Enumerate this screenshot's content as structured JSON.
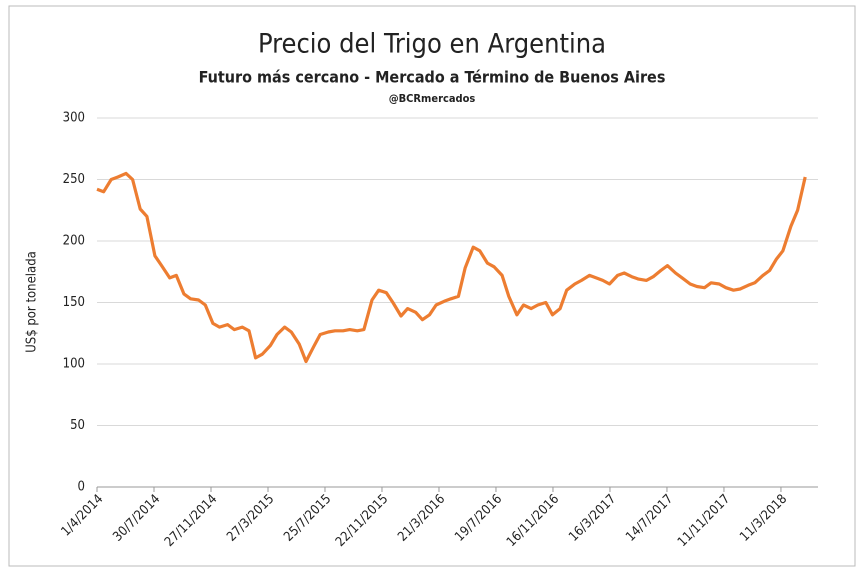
{
  "chart_data": {
    "type": "line",
    "title": "Precio del Trigo en Argentina",
    "subtitle": "Futuro más cercano - Mercado a Término de Buenos Aires",
    "annotation": "@BCRmercados",
    "y_label": "US$ por tonelada",
    "x": [
      "2014-04-01",
      "2014-04-15",
      "2014-05-01",
      "2014-05-15",
      "2014-06-01",
      "2014-06-15",
      "2014-07-01",
      "2014-07-15",
      "2014-08-01",
      "2014-08-15",
      "2014-09-01",
      "2014-09-15",
      "2014-10-01",
      "2014-10-15",
      "2014-11-01",
      "2014-11-15",
      "2014-12-01",
      "2014-12-15",
      "2015-01-01",
      "2015-01-15",
      "2015-02-01",
      "2015-02-15",
      "2015-03-01",
      "2015-03-15",
      "2015-04-01",
      "2015-04-15",
      "2015-05-01",
      "2015-05-15",
      "2015-06-01",
      "2015-06-15",
      "2015-07-01",
      "2015-07-15",
      "2015-08-01",
      "2015-08-15",
      "2015-09-01",
      "2015-09-15",
      "2015-10-01",
      "2015-10-15",
      "2015-11-01",
      "2015-11-15",
      "2015-12-01",
      "2015-12-15",
      "2016-01-01",
      "2016-01-15",
      "2016-02-01",
      "2016-02-15",
      "2016-03-01",
      "2016-03-15",
      "2016-04-01",
      "2016-04-15",
      "2016-05-01",
      "2016-05-15",
      "2016-06-01",
      "2016-06-15",
      "2016-07-01",
      "2016-07-15",
      "2016-08-01",
      "2016-08-15",
      "2016-09-01",
      "2016-09-15",
      "2016-10-01",
      "2016-10-15",
      "2016-11-01",
      "2016-11-15",
      "2016-12-01",
      "2016-12-15",
      "2017-01-01",
      "2017-01-15",
      "2017-02-01",
      "2017-02-15",
      "2017-03-01",
      "2017-03-15",
      "2017-04-01",
      "2017-04-15",
      "2017-05-01",
      "2017-05-15",
      "2017-06-01",
      "2017-06-15",
      "2017-07-01",
      "2017-07-15",
      "2017-08-01",
      "2017-08-15",
      "2017-09-01",
      "2017-09-15",
      "2017-10-01",
      "2017-10-15",
      "2017-11-01",
      "2017-11-15",
      "2017-12-01",
      "2017-12-15",
      "2018-01-01",
      "2018-01-15",
      "2018-02-01",
      "2018-02-15",
      "2018-03-01",
      "2018-03-15",
      "2018-04-01",
      "2018-04-15",
      "2018-05-01"
    ],
    "series": [
      {
        "name": "Trigo",
        "color": "#ed7d31",
        "values": [
          242,
          240,
          250,
          252,
          255,
          250,
          226,
          220,
          188,
          180,
          170,
          172,
          157,
          153,
          152,
          148,
          133,
          130,
          132,
          128,
          130,
          127,
          105,
          108,
          115,
          124,
          130,
          126,
          116,
          102,
          114,
          124,
          126,
          127,
          127,
          128,
          127,
          128,
          152,
          160,
          158,
          150,
          139,
          145,
          142,
          136,
          140,
          148,
          151,
          153,
          155,
          178,
          195,
          192,
          182,
          179,
          172,
          155,
          140,
          148,
          145,
          148,
          150,
          140,
          145,
          160,
          165,
          168,
          172,
          170,
          168,
          165,
          172,
          174,
          171,
          169,
          168,
          171,
          176,
          180,
          174,
          170,
          165,
          163,
          162,
          166,
          165,
          162,
          160,
          161,
          164,
          166,
          172,
          176,
          185,
          192,
          212,
          225,
          252
        ]
      }
    ],
    "xlim": [
      "2014-04-01",
      "2018-05-28"
    ],
    "xticks": [
      {
        "value": "2014-04-01",
        "label": "1/4/2014"
      },
      {
        "value": "2014-07-30",
        "label": "30/7/2014"
      },
      {
        "value": "2014-11-27",
        "label": "27/11/2014"
      },
      {
        "value": "2015-03-27",
        "label": "27/3/2015"
      },
      {
        "value": "2015-07-25",
        "label": "25/7/2015"
      },
      {
        "value": "2015-11-22",
        "label": "22/11/2015"
      },
      {
        "value": "2016-03-21",
        "label": "21/3/2016"
      },
      {
        "value": "2016-07-19",
        "label": "19/7/2016"
      },
      {
        "value": "2016-11-16",
        "label": "16/11/2016"
      },
      {
        "value": "2017-03-16",
        "label": "16/3/2017"
      },
      {
        "value": "2017-07-14",
        "label": "14/7/2017"
      },
      {
        "value": "2017-11-11",
        "label": "11/11/2017"
      },
      {
        "value": "2018-03-11",
        "label": "11/3/2018"
      }
    ],
    "ylim": [
      0,
      300
    ],
    "yticks": [
      0,
      50,
      100,
      150,
      200,
      250,
      300
    ],
    "grid": true
  }
}
